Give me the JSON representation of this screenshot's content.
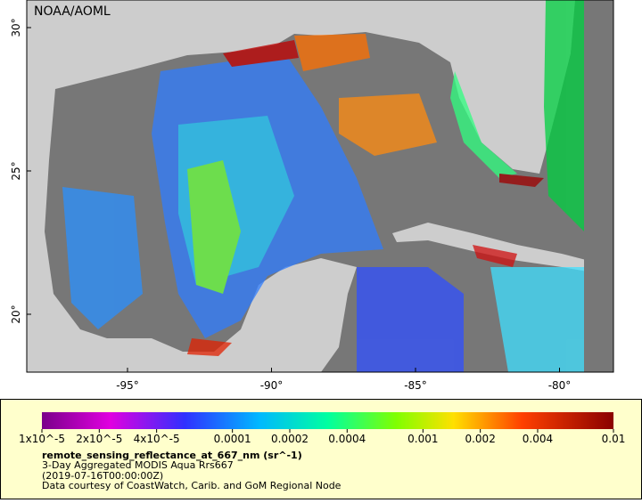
{
  "watermark": "NOAA/AOML",
  "longitude_ticks": [
    {
      "value": -95,
      "label": "-95°"
    },
    {
      "value": -90,
      "label": "-90°"
    },
    {
      "value": -85,
      "label": "-85°"
    },
    {
      "value": -80,
      "label": "-80°"
    }
  ],
  "latitude_ticks": [
    {
      "value": 30,
      "label": "30°"
    },
    {
      "value": 25,
      "label": "25°"
    },
    {
      "value": 20,
      "label": "20°"
    }
  ],
  "colorbar": {
    "lim": [
      1e-05,
      0.01
    ],
    "ticks": [
      {
        "value": 1e-05,
        "label": "1x10^-5"
      },
      {
        "value": 2e-05,
        "label": "2x10^-5"
      },
      {
        "value": 4e-05,
        "label": "4x10^-5"
      },
      0.0001,
      0.0002,
      0.0004,
      0.001,
      0.002,
      0.004,
      0.01
    ]
  },
  "caption": {
    "title": "remote_sensing_reflectance_at_667_nm (sr^-1)",
    "lines": [
      "3-Day Aggregated MODIS Aqua Rrs667",
      "(2019-07-16T00:00:00Z)",
      "Data courtesy of CoastWatch, Carib. and GoM Regional Node"
    ]
  }
}
